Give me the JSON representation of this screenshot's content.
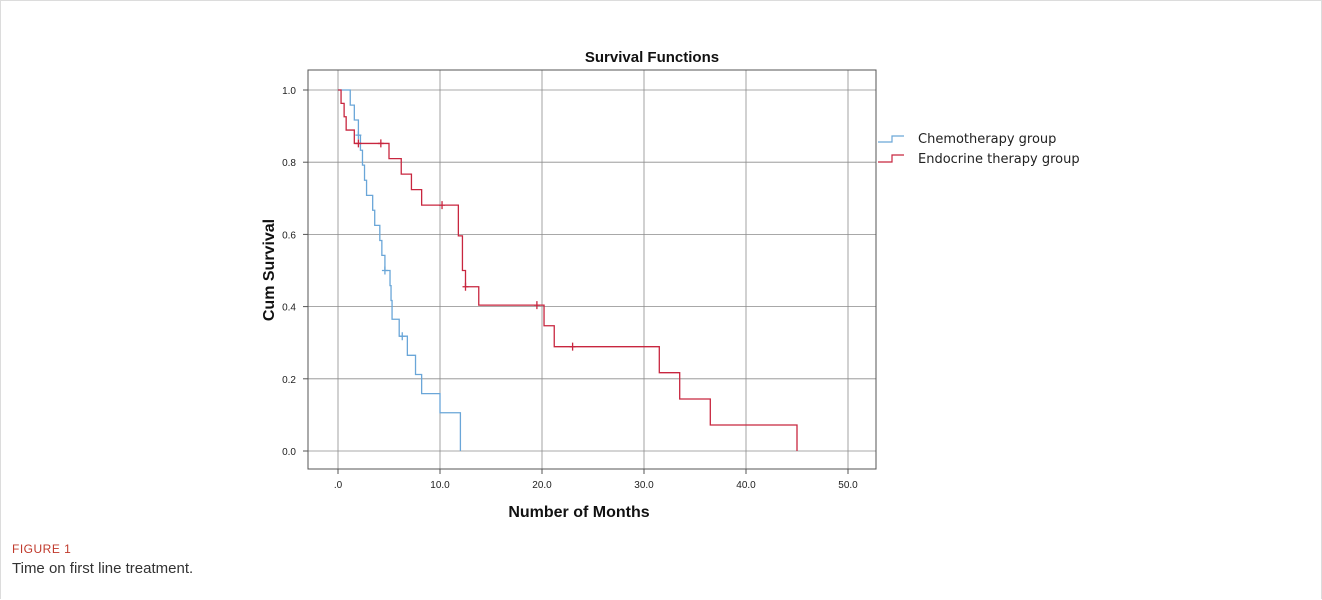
{
  "figure": {
    "label": "FIGURE 1",
    "caption": "Time on first line treatment."
  },
  "colors": {
    "chemotherapy": "#6aa6d8",
    "endocrine": "#c8263f",
    "grid": "#8c8c8c",
    "axis": "#555555"
  },
  "chart_data": {
    "type": "line",
    "title": "Survival Functions",
    "xlabel": "Number of Months",
    "ylabel": "Cum Survival",
    "xlim": [
      0,
      50
    ],
    "ylim": [
      0,
      1.0
    ],
    "x_ticks": [
      0,
      10,
      20,
      30,
      40,
      50
    ],
    "x_tick_labels": [
      ".0",
      "10.0",
      "20.0",
      "30.0",
      "40.0",
      "50.0"
    ],
    "y_ticks": [
      0,
      0.2,
      0.4,
      0.6,
      0.8,
      1.0
    ],
    "y_tick_labels": [
      "0.0",
      "0.2",
      "0.4",
      "0.6",
      "0.8",
      "1.0"
    ],
    "grid": true,
    "legend_position": "right",
    "series": [
      {
        "name": "Chemotherapy group",
        "color": "#6aa6d8",
        "steps": [
          [
            0,
            1.0
          ],
          [
            1.2,
            0.958
          ],
          [
            1.6,
            0.917
          ],
          [
            2.0,
            0.875
          ],
          [
            2.2,
            0.833
          ],
          [
            2.4,
            0.792
          ],
          [
            2.6,
            0.75
          ],
          [
            2.8,
            0.708
          ],
          [
            3.4,
            0.667
          ],
          [
            3.6,
            0.625
          ],
          [
            4.1,
            0.583
          ],
          [
            4.3,
            0.542
          ],
          [
            4.6,
            0.5
          ],
          [
            5.1,
            0.458
          ],
          [
            5.2,
            0.417
          ],
          [
            5.3,
            0.365
          ],
          [
            6.0,
            0.318
          ],
          [
            6.8,
            0.265
          ],
          [
            7.6,
            0.212
          ],
          [
            8.2,
            0.159
          ],
          [
            10.0,
            0.106
          ],
          [
            12.0,
            0.0
          ]
        ],
        "censored": [
          [
            2.0,
            0.875
          ],
          [
            4.6,
            0.5
          ],
          [
            6.3,
            0.318
          ]
        ]
      },
      {
        "name": "Endocrine therapy group",
        "color": "#c8263f",
        "steps": [
          [
            0,
            1.0
          ],
          [
            0.3,
            0.963
          ],
          [
            0.6,
            0.926
          ],
          [
            0.8,
            0.889
          ],
          [
            1.6,
            0.852
          ],
          [
            5.0,
            0.81
          ],
          [
            6.2,
            0.767
          ],
          [
            7.2,
            0.724
          ],
          [
            8.2,
            0.681
          ],
          [
            11.8,
            0.596
          ],
          [
            12.0,
            0.596
          ],
          [
            12.2,
            0.5
          ],
          [
            12.5,
            0.455
          ],
          [
            13.8,
            0.404
          ],
          [
            20.2,
            0.347
          ],
          [
            21.2,
            0.289
          ],
          [
            31.5,
            0.217
          ],
          [
            33.5,
            0.144
          ],
          [
            36.5,
            0.072
          ],
          [
            45.0,
            0.0
          ]
        ],
        "censored": [
          [
            2.0,
            0.852
          ],
          [
            4.2,
            0.852
          ],
          [
            10.2,
            0.681
          ],
          [
            12.5,
            0.455
          ],
          [
            19.5,
            0.404
          ],
          [
            23.0,
            0.289
          ]
        ]
      }
    ]
  }
}
